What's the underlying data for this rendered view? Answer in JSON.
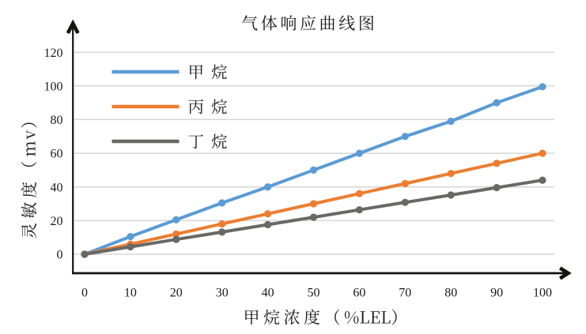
{
  "page": {
    "background": "#ffffff",
    "description": "Gas response curve line chart"
  },
  "chart_data": {
    "type": "line",
    "title": "气体响应曲线图",
    "xlabel": "甲烷浓度（%LEL）",
    "ylabel": "灵敏度（mv）",
    "x": [
      0,
      10,
      20,
      30,
      40,
      50,
      60,
      70,
      80,
      90,
      100
    ],
    "x_tick_labels": [
      "0",
      "10",
      "20",
      "30",
      "40",
      "50",
      "60",
      "70",
      "80",
      "90",
      "100"
    ],
    "y_ticks": [
      0,
      20,
      40,
      60,
      80,
      100,
      120
    ],
    "y_tick_labels": [
      "0",
      "20",
      "40",
      "60",
      "80",
      "100",
      "120"
    ],
    "xlim": [
      0,
      100
    ],
    "ylim": [
      0,
      120
    ],
    "grid": true,
    "legend_position": "inside-top-left",
    "series": [
      {
        "name": "甲烷",
        "color": "#5B9BD5",
        "values": [
          0,
          10.5,
          20.5,
          30.5,
          40,
          50,
          60,
          70,
          79,
          90,
          99.5
        ]
      },
      {
        "name": "丙烷",
        "color": "#ED7D31",
        "values": [
          0,
          6,
          12,
          18,
          24,
          30,
          36,
          42,
          48,
          54,
          60
        ]
      },
      {
        "name": "丁烷",
        "color": "#686866",
        "values": [
          0,
          4.4,
          8.8,
          13.2,
          17.6,
          22,
          26.4,
          30.8,
          35.2,
          39.6,
          44
        ]
      }
    ],
    "colors": {
      "grid": "#D6D6D6",
      "axis": "#161311",
      "text": "#1A1A1A"
    }
  }
}
